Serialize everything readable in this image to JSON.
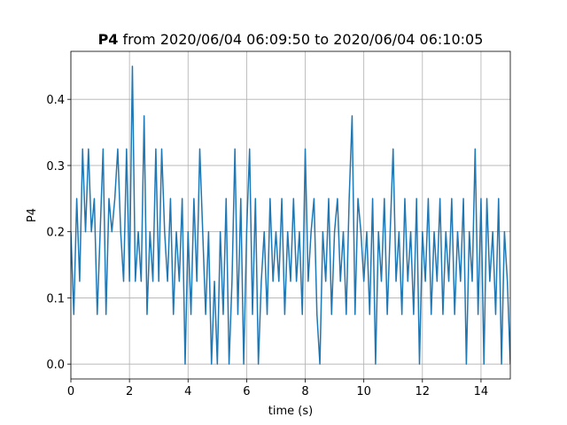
{
  "chart_data": {
    "type": "line",
    "title_bold": "P4",
    "title": "from 2020/06/04 06:09:50 to 2020/06/04 06:10:05",
    "xlabel": "time (s)",
    "ylabel": "P4",
    "xlim": [
      0,
      15
    ],
    "ylim": [
      -0.0225,
      0.4725
    ],
    "xticks": [
      0,
      2,
      4,
      6,
      8,
      10,
      12,
      14
    ],
    "yticks": [
      {
        "value": 0,
        "label": "0.0"
      },
      0.1,
      0.2,
      0.3,
      0.4
    ],
    "grid": true,
    "series": [
      {
        "color": "#1f77b4",
        "x": [
          0,
          0.1,
          0.2,
          0.3,
          0.4,
          0.5,
          0.6,
          0.7,
          0.8,
          0.9,
          1.0,
          1.1,
          1.2,
          1.3,
          1.4,
          1.5,
          1.6,
          1.7,
          1.8,
          1.9,
          2.0,
          2.1,
          2.2,
          2.3,
          2.4,
          2.5,
          2.6,
          2.7,
          2.8,
          2.9,
          3.0,
          3.1,
          3.2,
          3.3,
          3.4,
          3.5,
          3.6,
          3.7,
          3.8,
          3.9,
          4.0,
          4.1,
          4.2,
          4.3,
          4.4,
          4.5,
          4.6,
          4.7,
          4.8,
          4.9,
          5.0,
          5.1,
          5.2,
          5.3,
          5.4,
          5.5,
          5.6,
          5.7,
          5.8,
          5.9,
          6.0,
          6.1,
          6.2,
          6.3,
          6.4,
          6.5,
          6.6,
          6.7,
          6.8,
          6.9,
          7.0,
          7.1,
          7.2,
          7.3,
          7.4,
          7.5,
          7.6,
          7.7,
          7.8,
          7.9,
          8.0,
          8.1,
          8.2,
          8.3,
          8.4,
          8.5,
          8.6,
          8.7,
          8.8,
          8.9,
          9.0,
          9.1,
          9.2,
          9.3,
          9.4,
          9.5,
          9.6,
          9.7,
          9.8,
          9.9,
          10.0,
          10.1,
          10.2,
          10.3,
          10.4,
          10.5,
          10.6,
          10.7,
          10.8,
          10.9,
          11.0,
          11.1,
          11.2,
          11.3,
          11.4,
          11.5,
          11.6,
          11.7,
          11.8,
          11.9,
          12.0,
          12.1,
          12.2,
          12.3,
          12.4,
          12.5,
          12.6,
          12.7,
          12.8,
          12.9,
          13.0,
          13.1,
          13.2,
          13.3,
          13.4,
          13.5,
          13.6,
          13.7,
          13.8,
          13.9,
          14.0,
          14.1,
          14.2,
          14.3,
          14.4,
          14.5,
          14.6,
          14.7,
          14.8,
          14.9,
          15.0
        ],
        "values": [
          0.2,
          0.075,
          0.25,
          0.125,
          0.325,
          0.2,
          0.325,
          0.2,
          0.25,
          0.075,
          0.2,
          0.325,
          0.075,
          0.25,
          0.2,
          0.25,
          0.325,
          0.2,
          0.125,
          0.325,
          0.125,
          0.45,
          0.125,
          0.2,
          0.125,
          0.375,
          0.075,
          0.2,
          0.125,
          0.325,
          0.125,
          0.325,
          0.2,
          0.125,
          0.25,
          0.075,
          0.2,
          0.125,
          0.25,
          0.0,
          0.2,
          0.075,
          0.25,
          0.125,
          0.325,
          0.2,
          0.075,
          0.2,
          0.0,
          0.125,
          0.0,
          0.2,
          0.075,
          0.25,
          0.0,
          0.125,
          0.325,
          0.075,
          0.25,
          0.0,
          0.2,
          0.325,
          0.075,
          0.25,
          0.0,
          0.125,
          0.2,
          0.075,
          0.25,
          0.125,
          0.2,
          0.125,
          0.25,
          0.075,
          0.2,
          0.125,
          0.25,
          0.125,
          0.2,
          0.075,
          0.325,
          0.125,
          0.2,
          0.25,
          0.075,
          0.0,
          0.2,
          0.125,
          0.25,
          0.075,
          0.2,
          0.25,
          0.125,
          0.2,
          0.075,
          0.25,
          0.375,
          0.075,
          0.25,
          0.2,
          0.125,
          0.2,
          0.075,
          0.25,
          0.0,
          0.2,
          0.125,
          0.25,
          0.075,
          0.2,
          0.325,
          0.125,
          0.2,
          0.075,
          0.25,
          0.125,
          0.2,
          0.075,
          0.25,
          0.0,
          0.2,
          0.125,
          0.25,
          0.075,
          0.2,
          0.125,
          0.25,
          0.075,
          0.2,
          0.125,
          0.25,
          0.075,
          0.2,
          0.125,
          0.25,
          0.0,
          0.2,
          0.125,
          0.325,
          0.075,
          0.25,
          0.0,
          0.25,
          0.125,
          0.2,
          0.075,
          0.25,
          0.0,
          0.2,
          0.125,
          0.0
        ]
      }
    ]
  }
}
